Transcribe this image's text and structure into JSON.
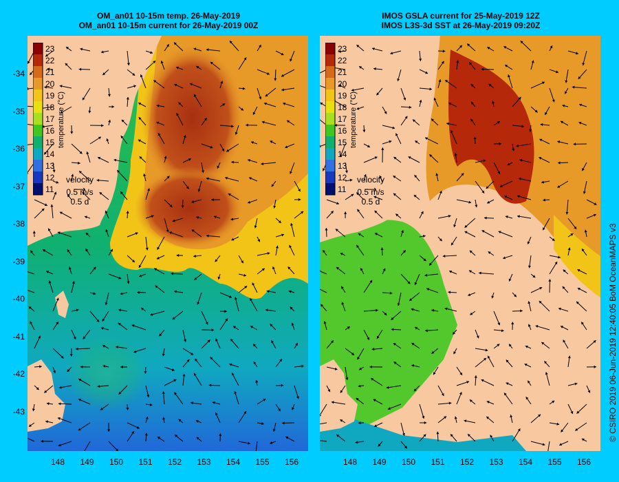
{
  "left_panel": {
    "title_line1": "OM_an01 10-15m temp. 26-May-2019",
    "title_line2": "OM_an01 10-15m current for 26-May-2019 00Z"
  },
  "right_panel": {
    "title_line1": "IMOS GSLA current for 25-May-2019 12Z",
    "title_line2": "IMOS L3S-3d SST at 26-May-2019 09:20Z"
  },
  "colorbar": {
    "label": "temperature (°C)",
    "ticks": [
      "23",
      "22",
      "21",
      "20",
      "19",
      "18",
      "17",
      "16",
      "15",
      "14",
      "13",
      "12",
      "11"
    ],
    "colors": [
      "#8b0000",
      "#b5280a",
      "#d66a1a",
      "#e89a28",
      "#f2c418",
      "#e8e010",
      "#a8e020",
      "#40c820",
      "#10b070",
      "#10a8c0",
      "#3070e0",
      "#1838c0",
      "#001070"
    ]
  },
  "velocity_key": {
    "label": "velocity",
    "speed": "0.5 m/s",
    "duration": "0.5 d"
  },
  "axes": {
    "lat_labels": [
      "-34",
      "-35",
      "-36",
      "-37",
      "-38",
      "-39",
      "-40",
      "-41",
      "-42",
      "-43"
    ],
    "lon_labels": [
      "148",
      "149",
      "150",
      "151",
      "152",
      "153",
      "154",
      "155",
      "156"
    ]
  },
  "credit": "© CSIRO 2019   06-Jun-2019 12:40:05 BoM OceanMAPS v3",
  "colors": {
    "background": "#00ccff",
    "land": "#f8c8a0"
  }
}
